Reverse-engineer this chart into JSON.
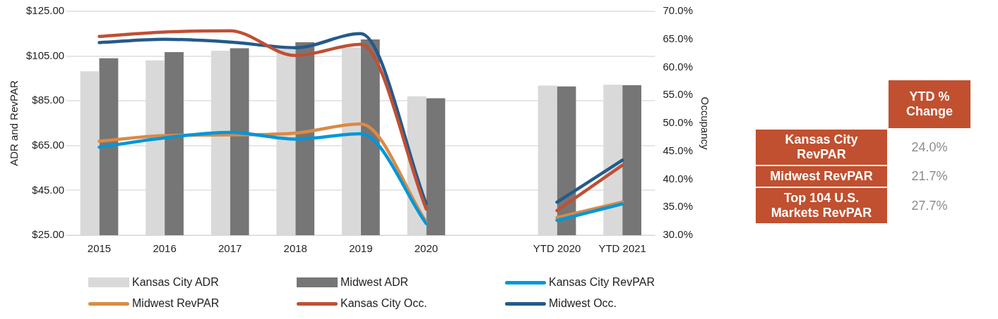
{
  "chart_data": [
    {
      "type": "bar",
      "ylabel": "ADR and RevPAR",
      "y2label": "Occupancy",
      "categories": [
        "2015",
        "2016",
        "2017",
        "2018",
        "2019",
        "2020",
        null,
        "YTD 2020",
        "YTD 2021"
      ],
      "series": [
        {
          "name": "Kansas City ADR",
          "type": "bar",
          "color": "#d9d9d9",
          "values": [
            98.2,
            103.1,
            107.4,
            109.2,
            108.8,
            87.0,
            null,
            91.8,
            92.2
          ]
        },
        {
          "name": "Midwest ADR",
          "type": "bar",
          "color": "#767676",
          "values": [
            104.0,
            106.8,
            108.5,
            111.2,
            112.4,
            86.2,
            null,
            91.4,
            92.0
          ]
        },
        {
          "name": "Kansas City RevPAR",
          "type": "line",
          "color": "#0097d7",
          "values": [
            64.3,
            68.5,
            70.9,
            67.9,
            70.3,
            30.2,
            null,
            31.6,
            39.0
          ]
        },
        {
          "name": "Midwest RevPAR",
          "type": "line",
          "color": "#db8a45",
          "values": [
            67.0,
            69.5,
            69.8,
            70.6,
            74.7,
            30.9,
            null,
            32.9,
            39.8
          ]
        },
        {
          "name": "Kansas City Occ.",
          "type": "line",
          "axis": "y2",
          "color": "#bf5034",
          "values": [
            65.5,
            66.3,
            66.5,
            62.1,
            64.1,
            34.7,
            null,
            34.4,
            42.5
          ]
        },
        {
          "name": "Midwest Occ.",
          "type": "line",
          "axis": "y2",
          "color": "#245a8a",
          "values": [
            64.4,
            65.0,
            64.5,
            63.5,
            66.0,
            35.6,
            null,
            35.9,
            43.4
          ]
        }
      ],
      "ylim": [
        25,
        125
      ],
      "yticks": [
        {
          "value": 25,
          "label": "$25.00"
        },
        {
          "value": 45,
          "label": "$45.00"
        },
        {
          "value": 65,
          "label": "$65.00"
        },
        {
          "value": 85,
          "label": "$85.00"
        },
        {
          "value": 105,
          "label": "$105.00"
        },
        {
          "value": 125,
          "label": "$125.00"
        }
      ],
      "y2lim": [
        30,
        70
      ],
      "y2ticks": [
        {
          "value": 30,
          "label": "30.0%"
        },
        {
          "value": 35,
          "label": "35.0%"
        },
        {
          "value": 40,
          "label": "40.0%"
        },
        {
          "value": 45,
          "label": "45.0%"
        },
        {
          "value": 50,
          "label": "50.0%"
        },
        {
          "value": 55,
          "label": "55.0%"
        },
        {
          "value": 60,
          "label": "60.0%"
        },
        {
          "value": 65,
          "label": "65.0%"
        },
        {
          "value": 70,
          "label": "70.0%"
        }
      ],
      "grid": "y",
      "legend": "bottom"
    },
    {
      "type": "other",
      "title": "YTD % Change",
      "color": "#c0502f",
      "categories": [
        "Kansas City RevPAR",
        "Midwest RevPAR",
        "Top 104 U.S. Markets RevPAR"
      ],
      "values": [
        24.0,
        21.7,
        27.7
      ],
      "value_labels": [
        "24.0%",
        "21.7%",
        "27.7%"
      ]
    }
  ]
}
